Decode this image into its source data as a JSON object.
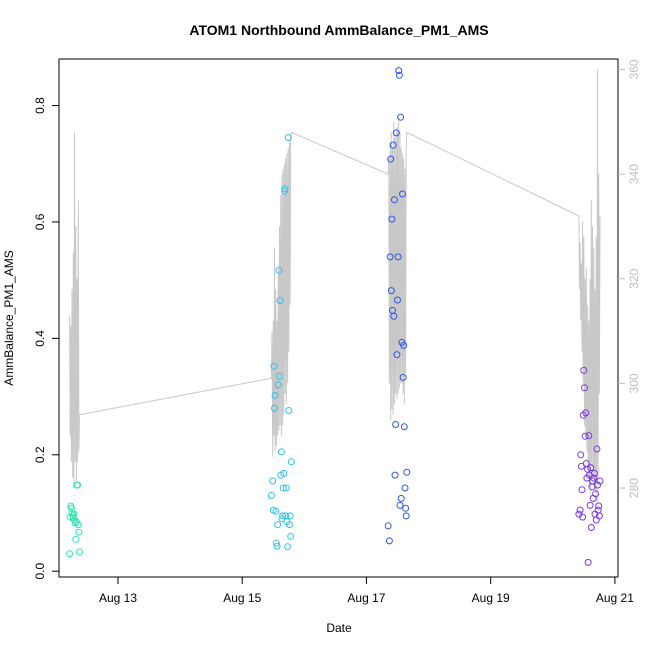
{
  "chart_data": {
    "type": "scatter",
    "title": "ATOM1 Northbound AmmBalance_PM1_AMS",
    "xlabel": "Date",
    "ylabel": "AmmBalance_PM1_AMS",
    "x_ticks": [
      "Aug 13",
      "Aug 15",
      "Aug 17",
      "Aug 19",
      "Aug 21"
    ],
    "x_range_days": [
      12.05,
      21.05
    ],
    "ylim": [
      -0.01,
      0.88
    ],
    "y_ticks": [
      0.0,
      0.2,
      0.4,
      0.6,
      0.8
    ],
    "y2lim": [
      263,
      362
    ],
    "y2_ticks": [
      280,
      300,
      320,
      340,
      360
    ],
    "grid": false,
    "colors": {
      "line": "#c8c8c8",
      "right_axis": "#bdbdbd",
      "cluster1": "#2de6b0",
      "cluster2": "#2ec4f0",
      "cluster3": "#2c56e8",
      "cluster4": "#7a3ae8"
    },
    "series": [
      {
        "color_key": "cluster1",
        "x": [
          12.22,
          12.24,
          12.25,
          12.26,
          12.27,
          12.28,
          12.29,
          12.3,
          12.31,
          12.33,
          12.34,
          12.35,
          12.36,
          12.37,
          12.38,
          12.23,
          12.32
        ],
        "y": [
          0.03,
          0.112,
          0.108,
          0.1,
          0.095,
          0.091,
          0.098,
          0.088,
          0.083,
          0.085,
          0.148,
          0.148,
          0.08,
          0.067,
          0.033,
          0.093,
          0.055
        ]
      },
      {
        "color_key": "cluster2",
        "x": [
          15.47,
          15.49,
          15.5,
          15.51,
          15.52,
          15.53,
          15.54,
          15.55,
          15.56,
          15.57,
          15.58,
          15.59,
          15.6,
          15.61,
          15.62,
          15.63,
          15.64,
          15.65,
          15.66,
          15.67,
          15.68,
          15.69,
          15.7,
          15.71,
          15.72,
          15.73,
          15.74,
          15.75,
          15.76,
          15.77,
          15.78,
          15.79
        ],
        "y": [
          0.13,
          0.155,
          0.105,
          0.352,
          0.28,
          0.302,
          0.103,
          0.048,
          0.043,
          0.08,
          0.32,
          0.517,
          0.335,
          0.465,
          0.165,
          0.205,
          0.09,
          0.095,
          0.143,
          0.168,
          0.653,
          0.657,
          0.095,
          0.143,
          0.085,
          0.042,
          0.745,
          0.276,
          0.08,
          0.095,
          0.06,
          0.188
        ]
      },
      {
        "color_key": "cluster3",
        "x": [
          17.35,
          17.37,
          17.38,
          17.39,
          17.4,
          17.41,
          17.42,
          17.43,
          17.44,
          17.45,
          17.46,
          17.47,
          17.48,
          17.49,
          17.5,
          17.51,
          17.52,
          17.53,
          17.54,
          17.55,
          17.56,
          17.57,
          17.58,
          17.59,
          17.6,
          17.61,
          17.62,
          17.63,
          17.64,
          17.65
        ],
        "y": [
          0.078,
          0.052,
          0.54,
          0.708,
          0.482,
          0.605,
          0.448,
          0.732,
          0.438,
          0.638,
          0.165,
          0.252,
          0.753,
          0.372,
          0.466,
          0.54,
          0.86,
          0.852,
          0.113,
          0.78,
          0.125,
          0.393,
          0.648,
          0.333,
          0.388,
          0.248,
          0.143,
          0.108,
          0.095,
          0.17
        ]
      },
      {
        "color_key": "cluster4",
        "x": [
          20.42,
          20.44,
          20.45,
          20.46,
          20.47,
          20.48,
          20.49,
          20.5,
          20.51,
          20.52,
          20.53,
          20.54,
          20.55,
          20.56,
          20.57,
          20.58,
          20.59,
          20.6,
          20.61,
          20.62,
          20.63,
          20.64,
          20.65,
          20.66,
          20.67,
          20.68,
          20.69,
          20.7,
          20.71,
          20.72,
          20.73,
          20.74,
          20.75,
          20.76
        ],
        "y": [
          0.098,
          0.105,
          0.2,
          0.18,
          0.14,
          0.093,
          0.268,
          0.345,
          0.315,
          0.232,
          0.272,
          0.185,
          0.16,
          0.175,
          0.015,
          0.233,
          0.165,
          0.113,
          0.178,
          0.075,
          0.145,
          0.155,
          0.125,
          0.16,
          0.168,
          0.098,
          0.133,
          0.088,
          0.21,
          0.148,
          0.105,
          0.112,
          0.095,
          0.155
        ]
      }
    ],
    "line_series": {
      "axis": "right",
      "x": [
        12.22,
        12.23,
        12.24,
        12.25,
        12.26,
        12.27,
        12.28,
        12.29,
        12.3,
        12.31,
        12.32,
        12.33,
        12.34,
        12.35,
        12.36,
        12.37,
        12.38,
        15.47,
        15.48,
        15.49,
        15.5,
        15.51,
        15.52,
        15.53,
        15.54,
        15.55,
        15.56,
        15.57,
        15.58,
        15.59,
        15.6,
        15.61,
        15.62,
        15.63,
        15.64,
        15.65,
        15.66,
        15.67,
        15.68,
        15.69,
        15.7,
        15.71,
        15.72,
        15.73,
        15.74,
        15.75,
        15.76,
        15.77,
        15.78,
        15.79,
        17.35,
        17.36,
        17.37,
        17.38,
        17.39,
        17.4,
        17.41,
        17.42,
        17.43,
        17.44,
        17.45,
        17.46,
        17.47,
        17.48,
        17.49,
        17.5,
        17.51,
        17.52,
        17.53,
        17.54,
        17.55,
        17.56,
        17.57,
        17.58,
        17.59,
        17.6,
        17.61,
        17.62,
        17.63,
        17.64,
        17.65,
        20.42,
        20.43,
        20.44,
        20.45,
        20.46,
        20.47,
        20.48,
        20.49,
        20.5,
        20.51,
        20.52,
        20.53,
        20.54,
        20.55,
        20.56,
        20.57,
        20.58,
        20.59,
        20.6,
        20.61,
        20.62,
        20.63,
        20.64,
        20.65,
        20.66,
        20.67,
        20.68,
        20.69,
        20.7,
        20.71,
        20.72,
        20.73,
        20.74,
        20.75,
        20.76
      ],
      "y": [
        313,
        290,
        311,
        285,
        318,
        282,
        325,
        280,
        348,
        285,
        330,
        281,
        320,
        285,
        335,
        287,
        294,
        301,
        310,
        286,
        312,
        290,
        326,
        287,
        318,
        288,
        312,
        290,
        322,
        291,
        330,
        292,
        336,
        290,
        340,
        292,
        341,
        294,
        342,
        298,
        343,
        296,
        344,
        300,
        345,
        306,
        346,
        315,
        347,
        348,
        340,
        343,
        300,
        346,
        293,
        348,
        295,
        345,
        294,
        350,
        296,
        347,
        298,
        348,
        297,
        349,
        298,
        351,
        299,
        348,
        300,
        345,
        300,
        344,
        298,
        343,
        296,
        341,
        302,
        345,
        348,
        332,
        318,
        327,
        312,
        323,
        306,
        331,
        300,
        328,
        292,
        320,
        290,
        322,
        287,
        315,
        282,
        312,
        280,
        320,
        278,
        335,
        284,
        330,
        282,
        326,
        280,
        318,
        279,
        328,
        277,
        360,
        282,
        340,
        298,
        332
      ]
    },
    "line_gap_connect": true
  }
}
